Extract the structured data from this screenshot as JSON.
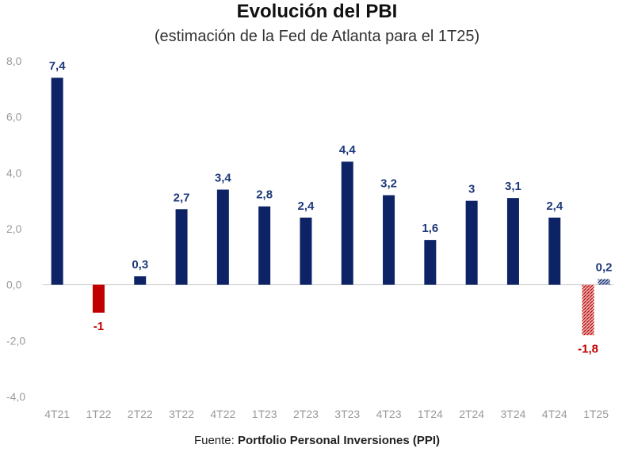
{
  "chart_data": {
    "type": "bar",
    "title": "Evolución del PBI",
    "subtitle": "(estimación de la Fed de Atlanta para el 1T25)",
    "categories": [
      "4T21",
      "1T22",
      "2T22",
      "3T22",
      "4T22",
      "1T23",
      "2T23",
      "3T23",
      "4T23",
      "1T24",
      "2T24",
      "3T24",
      "4T24",
      "1T25"
    ],
    "series": [
      {
        "name": "PBI",
        "values": [
          7.4,
          -1,
          0.3,
          2.7,
          3.4,
          2.8,
          2.4,
          4.4,
          3.2,
          1.6,
          3,
          3.1,
          2.4,
          null
        ],
        "labels": [
          "7,4",
          "-1",
          "0,3",
          "2,7",
          "3,4",
          "2,8",
          "2,4",
          "4,4",
          "3,2",
          "1,6",
          "3",
          "3,1",
          "2,4",
          ""
        ]
      }
    ],
    "estimates": [
      {
        "category": "1T25",
        "value": -1.8,
        "label": "-1,8",
        "style": "hatched-red"
      },
      {
        "category": "1T25",
        "value": 0.2,
        "label": "0,2",
        "style": "hatched-blue"
      }
    ],
    "ylim": [
      -4,
      8
    ],
    "yticks": [
      8,
      6,
      4,
      2,
      0,
      -2,
      -4
    ],
    "ytick_labels": [
      "8,0",
      "6,0",
      "4,0",
      "2,0",
      "0,0",
      "-2,0",
      "-4,0"
    ],
    "xlabel": "",
    "ylabel": "",
    "colors": {
      "positive": "#0d2366",
      "negative": "#c00000",
      "positive_label": "#1f3a7a",
      "negative_label": "#c00000",
      "axis": "#d0d0d0"
    }
  },
  "source": {
    "prefix": "Fuente: ",
    "name": "Portfolio Personal Inversiones (PPI)"
  }
}
